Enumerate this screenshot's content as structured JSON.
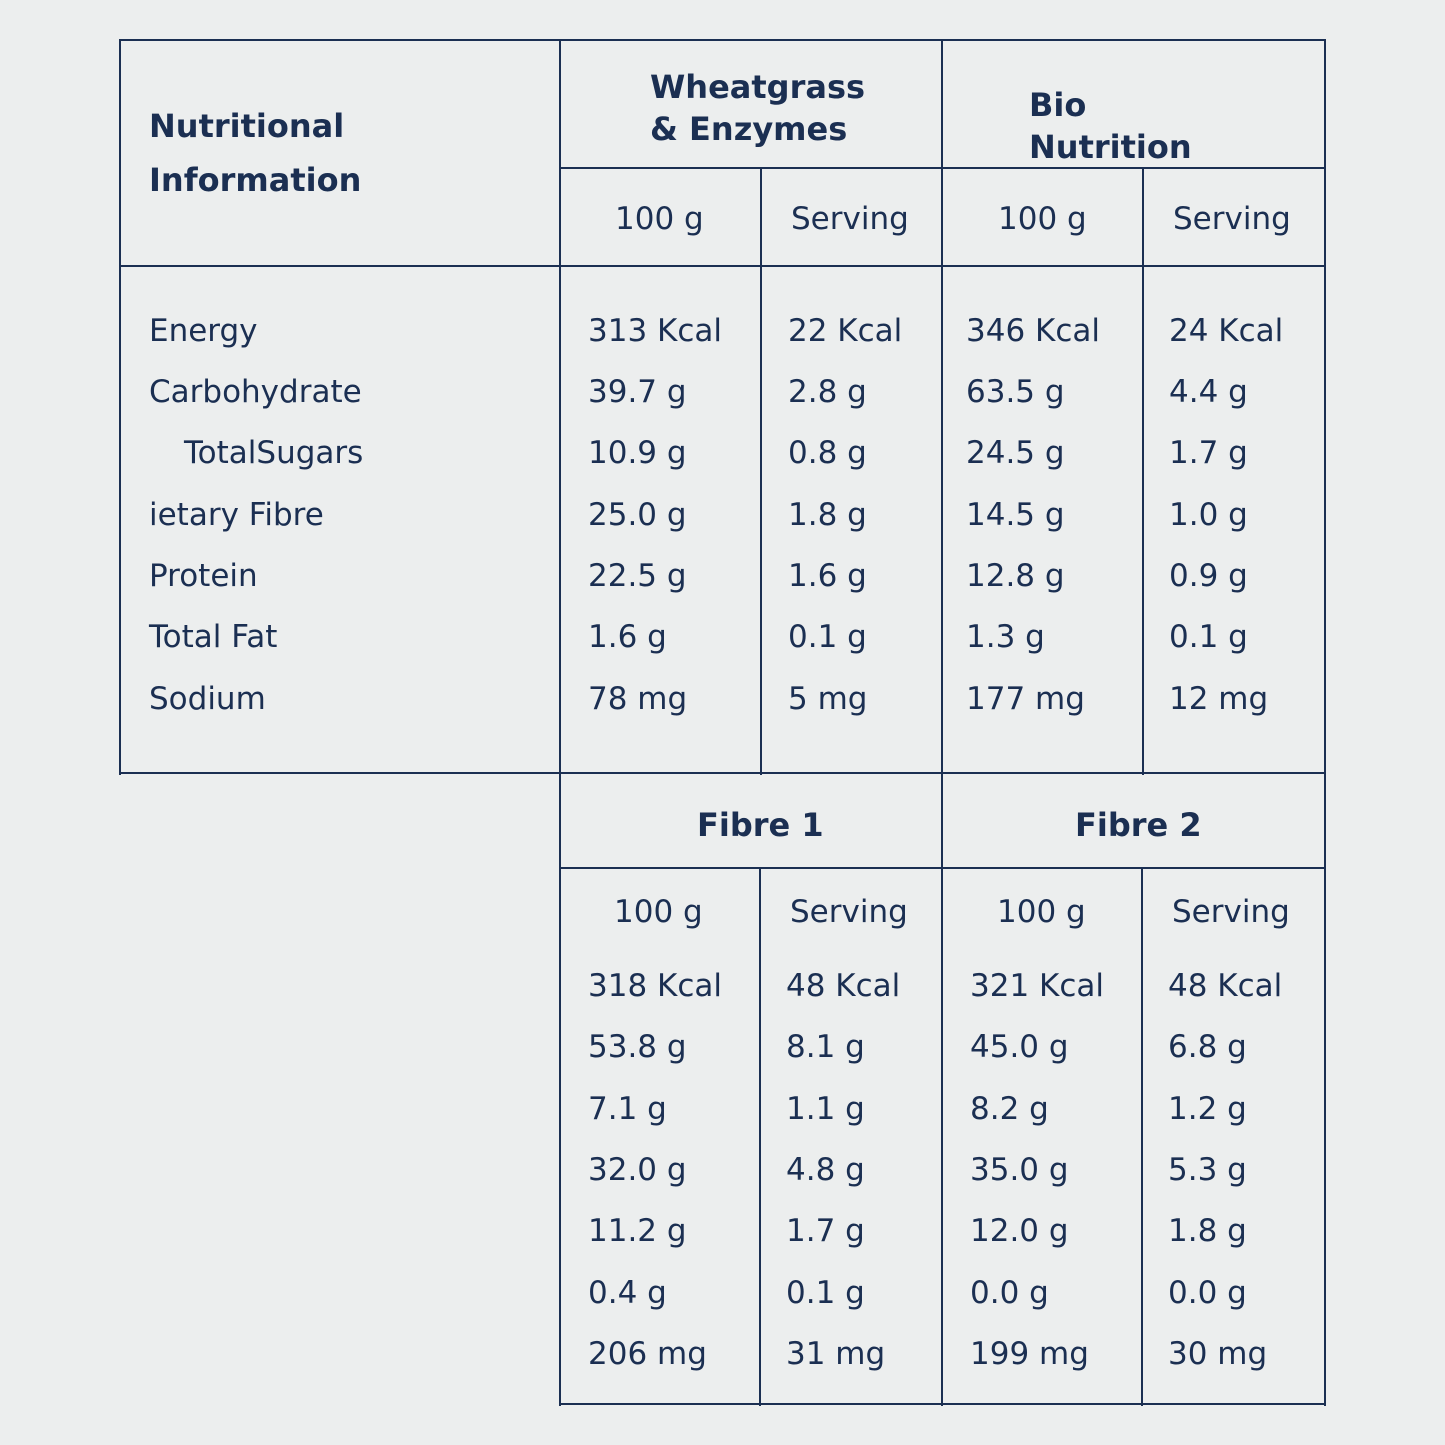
{
  "colors": {
    "background": "#eceeee",
    "ink": "#1b2f52"
  },
  "top_table": {
    "title": "Nutritional\nInformation",
    "groups": [
      {
        "name": "Wheatgrass\n& Enzymes",
        "col_100g": "100 g",
        "col_serving": "Serving"
      },
      {
        "name": "Bio\nNutrition",
        "col_100g": "100 g",
        "col_serving": "Serving"
      }
    ],
    "rows": [
      {
        "label": "Energy",
        "values": [
          "313 Kcal",
          "22 Kcal",
          "346 Kcal",
          "24 Kcal"
        ]
      },
      {
        "label": "Carbohydrate",
        "values": [
          "39.7 g",
          "2.8 g",
          "63.5 g",
          "4.4 g"
        ]
      },
      {
        "label": "TotalSugars",
        "values": [
          "10.9 g",
          "0.8 g",
          "24.5 g",
          "1.7 g"
        ]
      },
      {
        "label": "ietary Fibre",
        "values": [
          "25.0 g",
          "1.8 g",
          "14.5 g",
          "1.0 g"
        ]
      },
      {
        "label": "Protein",
        "values": [
          "22.5 g",
          "1.6 g",
          "12.8 g",
          "0.9 g"
        ]
      },
      {
        "label": "Total Fat",
        "values": [
          "1.6 g",
          "0.1 g",
          "1.3 g",
          "0.1 g"
        ]
      },
      {
        "label": "Sodium",
        "values": [
          "78 mg",
          "5 mg",
          "177 mg",
          "12 mg"
        ]
      }
    ]
  },
  "bottom_table": {
    "groups": [
      {
        "name": "Fibre 1",
        "col_100g": "100 g",
        "col_serving": "Serving"
      },
      {
        "name": "Fibre 2",
        "col_100g": "100 g",
        "col_serving": "Serving"
      }
    ],
    "rows": [
      [
        "318 Kcal",
        "48 Kcal",
        "321 Kcal",
        "48 Kcal"
      ],
      [
        "53.8 g",
        "8.1 g",
        "45.0 g",
        "6.8 g"
      ],
      [
        "7.1 g",
        "1.1 g",
        "8.2 g",
        "1.2 g"
      ],
      [
        "32.0 g",
        "4.8 g",
        "35.0 g",
        "5.3 g"
      ],
      [
        "11.2 g",
        "1.7 g",
        "12.0 g",
        "1.8 g"
      ],
      [
        "0.4 g",
        "0.1 g",
        "0.0 g",
        "0.0 g"
      ],
      [
        "206 mg",
        "31 mg",
        "199 mg",
        "30 mg"
      ]
    ]
  }
}
